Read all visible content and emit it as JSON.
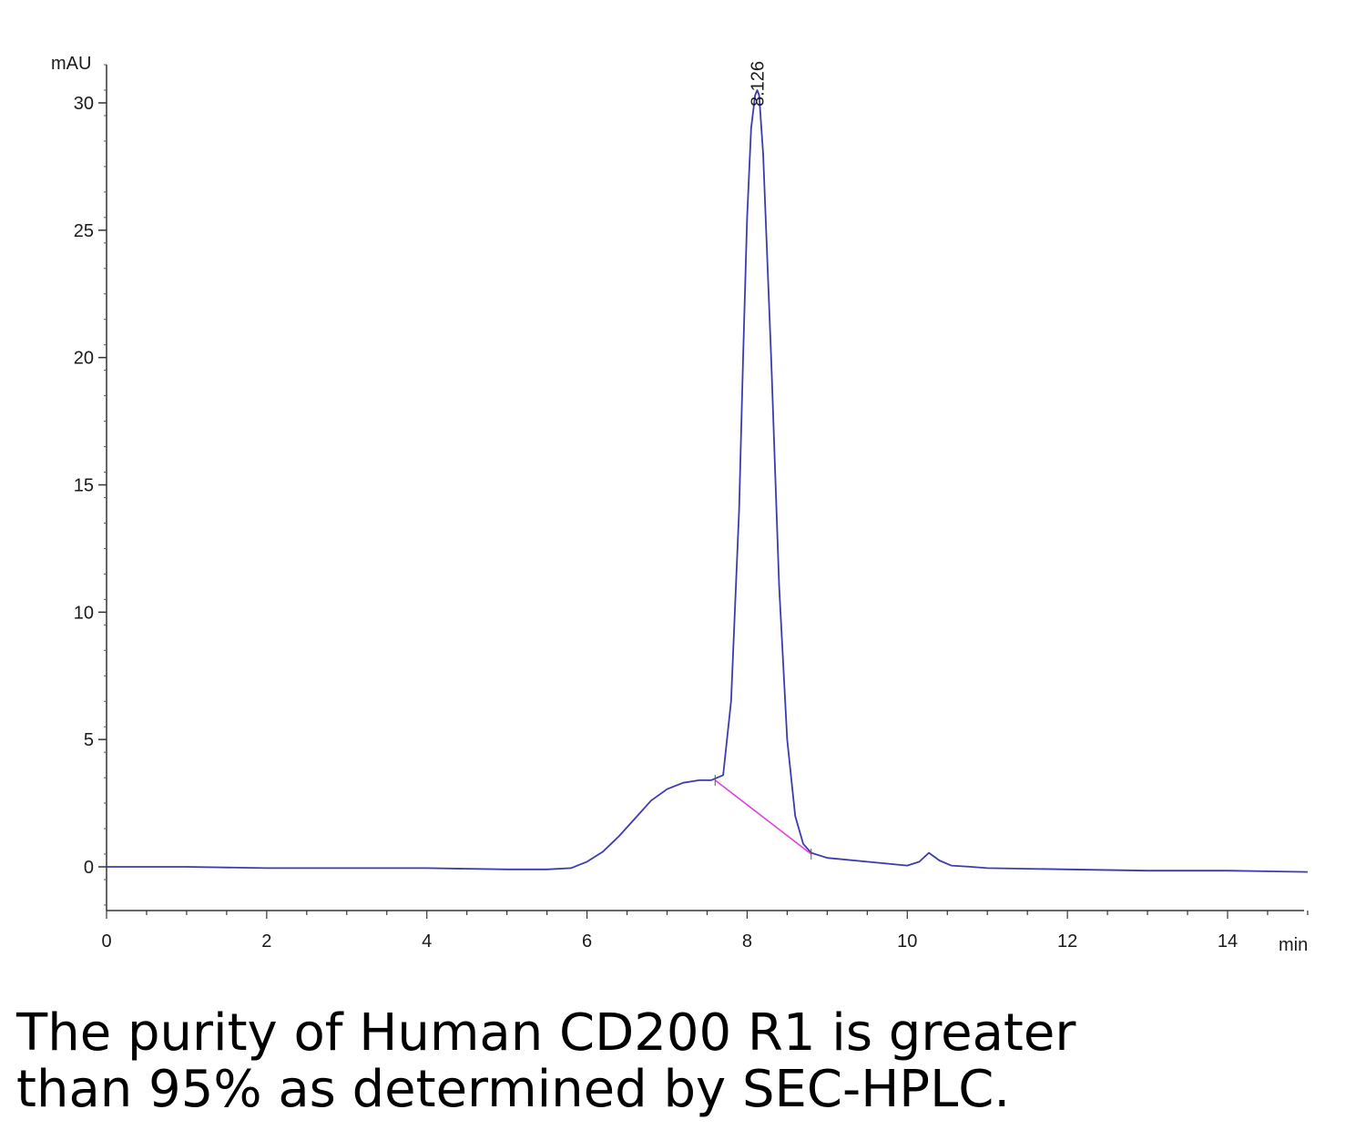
{
  "chart_data": {
    "type": "line",
    "title": "",
    "xlabel": "min",
    "ylabel": "mAU",
    "xlim": [
      0,
      15
    ],
    "ylim": [
      -1.8,
      31.5
    ],
    "x_ticks": [
      0,
      2,
      4,
      6,
      8,
      10,
      12,
      14
    ],
    "y_ticks": [
      0,
      5,
      10,
      15,
      20,
      25,
      30
    ],
    "grid": false,
    "peak_annotations": [
      {
        "label": "8.126",
        "x": 8.126,
        "y": 30.5
      }
    ],
    "series": [
      {
        "color": "#3b3bb0",
        "x": [
          0,
          1,
          2,
          3,
          4,
          5,
          5.5,
          5.8,
          6.0,
          6.2,
          6.4,
          6.6,
          6.8,
          7.0,
          7.2,
          7.4,
          7.55,
          7.7,
          7.8,
          7.9,
          7.95,
          8.0,
          8.05,
          8.1,
          8.126,
          8.15,
          8.2,
          8.3,
          8.4,
          8.5,
          8.6,
          8.7,
          8.8,
          9.0,
          9.5,
          10.0,
          10.15,
          10.27,
          10.4,
          10.55,
          10.8,
          11.0,
          12.0,
          13.0,
          14.0,
          15.0
        ],
        "values": [
          0,
          0,
          -0.05,
          -0.05,
          -0.05,
          -0.1,
          -0.1,
          -0.05,
          0.2,
          0.6,
          1.2,
          1.9,
          2.6,
          3.05,
          3.3,
          3.4,
          3.4,
          3.6,
          6.5,
          14.0,
          20.0,
          25.5,
          29.0,
          30.3,
          30.5,
          30.3,
          28.0,
          20.0,
          11.0,
          5.0,
          2.0,
          0.9,
          0.55,
          0.35,
          0.2,
          0.05,
          0.2,
          0.55,
          0.25,
          0.05,
          0.0,
          -0.05,
          -0.1,
          -0.15,
          -0.15,
          -0.2
        ]
      },
      {
        "color": "#e040e0",
        "x": [
          7.6,
          8.8
        ],
        "values": [
          3.4,
          0.5
        ]
      }
    ]
  },
  "caption": {
    "line1": "The purity of Human CD200 R1 is greater",
    "line2": "than 95% as determined by SEC-HPLC."
  }
}
